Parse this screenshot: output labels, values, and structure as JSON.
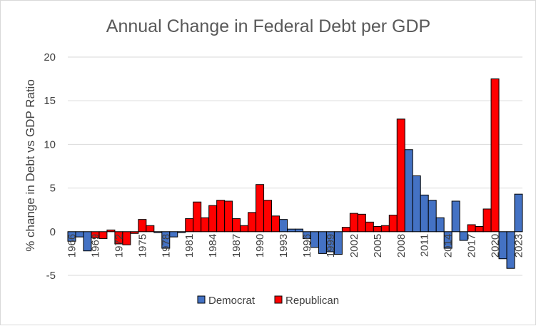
{
  "chart_data": {
    "type": "bar",
    "title": "Annual Change in Federal Debt per GDP",
    "xlabel": "",
    "ylabel": "% change in Debt vs GDP Ratio",
    "ylim": [
      -5,
      20
    ],
    "yticks": [
      20,
      15,
      10,
      5,
      0,
      -5
    ],
    "grid": "horizontal",
    "legend_position": "bottom",
    "x_tick_labels": [
      "1966",
      "1969",
      "1972",
      "1975",
      "1978",
      "1981",
      "1984",
      "1987",
      "1990",
      "1993",
      "1996",
      "1999",
      "2002",
      "2005",
      "2008",
      "2011",
      "2014",
      "2017",
      "2020",
      "2023"
    ],
    "colors": {
      "Democrat": "#4472c4",
      "Republican": "#ff0000"
    },
    "bars": [
      {
        "year": 1966,
        "party": "Democrat",
        "value": -1.1
      },
      {
        "year": 1967,
        "party": "Democrat",
        "value": -0.6
      },
      {
        "year": 1968,
        "party": "Democrat",
        "value": -2.2
      },
      {
        "year": 1969,
        "party": "Republican",
        "value": -0.7
      },
      {
        "year": 1970,
        "party": "Republican",
        "value": -0.8
      },
      {
        "year": 1971,
        "party": "Republican",
        "value": 0.2
      },
      {
        "year": 1972,
        "party": "Republican",
        "value": -1.4
      },
      {
        "year": 1973,
        "party": "Republican",
        "value": -1.5
      },
      {
        "year": 1974,
        "party": "Republican",
        "value": -0.2
      },
      {
        "year": 1975,
        "party": "Republican",
        "value": 1.4
      },
      {
        "year": 1976,
        "party": "Republican",
        "value": 0.7
      },
      {
        "year": 1977,
        "party": "Democrat",
        "value": -0.1
      },
      {
        "year": 1978,
        "party": "Democrat",
        "value": -1.9
      },
      {
        "year": 1979,
        "party": "Democrat",
        "value": -0.6
      },
      {
        "year": 1980,
        "party": "Democrat",
        "value": -0.1
      },
      {
        "year": 1981,
        "party": "Republican",
        "value": 1.5
      },
      {
        "year": 1982,
        "party": "Republican",
        "value": 3.4
      },
      {
        "year": 1983,
        "party": "Republican",
        "value": 1.6
      },
      {
        "year": 1984,
        "party": "Republican",
        "value": 3.0
      },
      {
        "year": 1985,
        "party": "Republican",
        "value": 3.6
      },
      {
        "year": 1986,
        "party": "Republican",
        "value": 3.5
      },
      {
        "year": 1987,
        "party": "Republican",
        "value": 1.5
      },
      {
        "year": 1988,
        "party": "Republican",
        "value": 0.7
      },
      {
        "year": 1989,
        "party": "Republican",
        "value": 2.2
      },
      {
        "year": 1990,
        "party": "Republican",
        "value": 5.4
      },
      {
        "year": 1991,
        "party": "Republican",
        "value": 3.6
      },
      {
        "year": 1992,
        "party": "Republican",
        "value": 1.8
      },
      {
        "year": 1993,
        "party": "Democrat",
        "value": 1.4
      },
      {
        "year": 1994,
        "party": "Democrat",
        "value": 0.3
      },
      {
        "year": 1995,
        "party": "Democrat",
        "value": 0.3
      },
      {
        "year": 1996,
        "party": "Democrat",
        "value": -0.8
      },
      {
        "year": 1997,
        "party": "Democrat",
        "value": -1.8
      },
      {
        "year": 1998,
        "party": "Democrat",
        "value": -2.5
      },
      {
        "year": 1999,
        "party": "Democrat",
        "value": -2.3
      },
      {
        "year": 2000,
        "party": "Democrat",
        "value": -2.6
      },
      {
        "year": 2001,
        "party": "Republican",
        "value": 0.5
      },
      {
        "year": 2002,
        "party": "Republican",
        "value": 2.1
      },
      {
        "year": 2003,
        "party": "Republican",
        "value": 2.0
      },
      {
        "year": 2004,
        "party": "Republican",
        "value": 1.1
      },
      {
        "year": 2005,
        "party": "Republican",
        "value": 0.6
      },
      {
        "year": 2006,
        "party": "Republican",
        "value": 0.7
      },
      {
        "year": 2007,
        "party": "Republican",
        "value": 1.9
      },
      {
        "year": 2008,
        "party": "Republican",
        "value": 12.9
      },
      {
        "year": 2009,
        "party": "Democrat",
        "value": 9.4
      },
      {
        "year": 2010,
        "party": "Democrat",
        "value": 6.4
      },
      {
        "year": 2011,
        "party": "Democrat",
        "value": 4.2
      },
      {
        "year": 2012,
        "party": "Democrat",
        "value": 3.6
      },
      {
        "year": 2013,
        "party": "Democrat",
        "value": 1.6
      },
      {
        "year": 2014,
        "party": "Democrat",
        "value": -1.9
      },
      {
        "year": 2015,
        "party": "Democrat",
        "value": 3.5
      },
      {
        "year": 2016,
        "party": "Democrat",
        "value": -1.0
      },
      {
        "year": 2017,
        "party": "Republican",
        "value": 0.8
      },
      {
        "year": 2018,
        "party": "Republican",
        "value": 0.6
      },
      {
        "year": 2019,
        "party": "Republican",
        "value": 2.6
      },
      {
        "year": 2020,
        "party": "Republican",
        "value": 17.5
      },
      {
        "year": 2021,
        "party": "Democrat",
        "value": -3.1
      },
      {
        "year": 2022,
        "party": "Democrat",
        "value": -4.2
      },
      {
        "year": 2023,
        "party": "Democrat",
        "value": 4.3
      }
    ],
    "legend": [
      {
        "name": "Democrat",
        "color": "#4472c4"
      },
      {
        "name": "Republican",
        "color": "#ff0000"
      }
    ]
  }
}
